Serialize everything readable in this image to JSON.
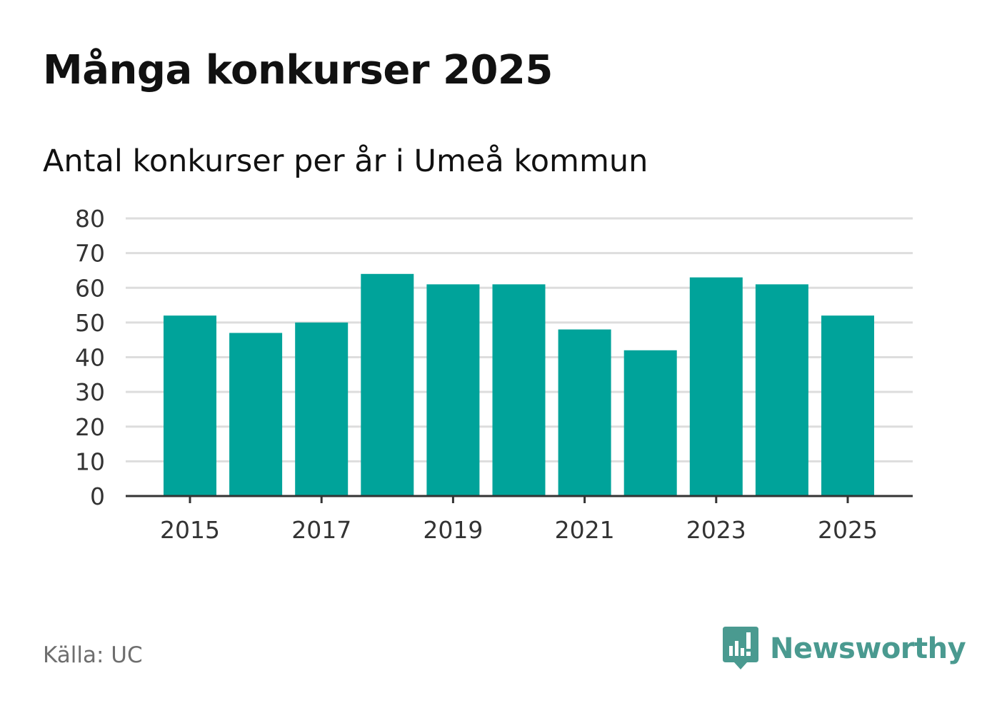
{
  "title": "Många konkurser 2025",
  "subtitle": "Antal konkurser per år i Umeå kommun",
  "source": "Källa: UC",
  "brand": {
    "name": "Newsworthy",
    "icon": "newsworthy-logo-icon",
    "color": "#4a9a90"
  },
  "colors": {
    "bar": "#00a39a",
    "grid": "#dddddd",
    "axis": "#333333",
    "text": "#333333"
  },
  "chart_data": {
    "type": "bar",
    "categories": [
      "2015",
      "2016",
      "2017",
      "2018",
      "2019",
      "2020",
      "2021",
      "2022",
      "2023",
      "2024",
      "2025"
    ],
    "values": [
      52,
      47,
      50,
      64,
      61,
      61,
      48,
      42,
      63,
      61,
      52
    ],
    "x_tick_labels": [
      "2015",
      "2017",
      "2019",
      "2021",
      "2023",
      "2025"
    ],
    "y_ticks": [
      0,
      10,
      20,
      30,
      40,
      50,
      60,
      70,
      80
    ],
    "ylim": [
      0,
      80
    ],
    "grid": true,
    "legend": "none"
  }
}
